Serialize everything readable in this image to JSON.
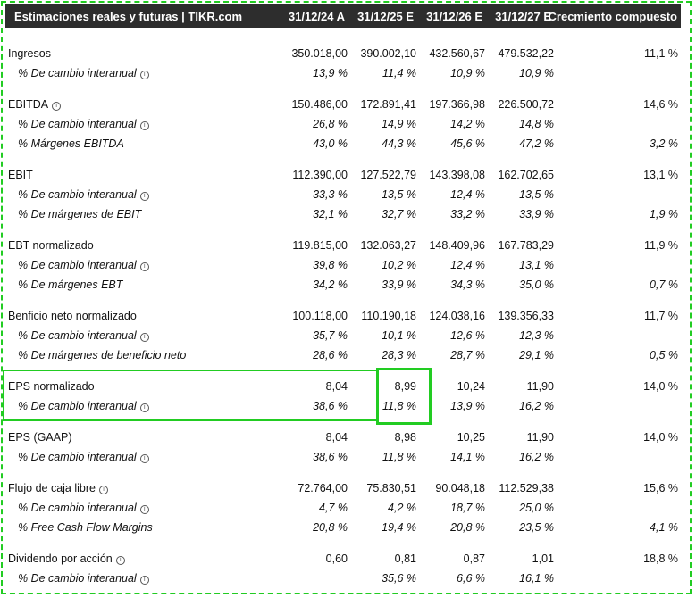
{
  "header": {
    "title": "Estimaciones reales y futuras | TIKR.com",
    "cols": [
      "31/12/24 A",
      "31/12/25 E",
      "31/12/26 E",
      "31/12/27 E",
      "Crecmiento compuesto"
    ]
  },
  "rows": [
    {
      "label": "Ingresos",
      "v": [
        "350.018,00",
        "390.002,10",
        "432.560,67",
        "479.532,22",
        "11,1 %"
      ]
    },
    {
      "label": "% De cambio interanual",
      "v": [
        "13,9 %",
        "11,4 %",
        "10,9 %",
        "10,9 %",
        ""
      ]
    },
    {
      "label": "EBITDA",
      "v": [
        "150.486,00",
        "172.891,41",
        "197.366,98",
        "226.500,72",
        "14,6 %"
      ]
    },
    {
      "label": "% De cambio interanual",
      "v": [
        "26,8 %",
        "14,9 %",
        "14,2 %",
        "14,8 %",
        ""
      ]
    },
    {
      "label": "% Márgenes EBITDA",
      "v": [
        "43,0 %",
        "44,3 %",
        "45,6 %",
        "47,2 %",
        "3,2 %"
      ]
    },
    {
      "label": "EBIT",
      "v": [
        "112.390,00",
        "127.522,79",
        "143.398,08",
        "162.702,65",
        "13,1 %"
      ]
    },
    {
      "label": "% De cambio interanual",
      "v": [
        "33,3 %",
        "13,5 %",
        "12,4 %",
        "13,5 %",
        ""
      ]
    },
    {
      "label": "% De márgenes de EBIT",
      "v": [
        "32,1 %",
        "32,7 %",
        "33,2 %",
        "33,9 %",
        "1,9 %"
      ]
    },
    {
      "label": "EBT normalizado",
      "v": [
        "119.815,00",
        "132.063,27",
        "148.409,96",
        "167.783,29",
        "11,9 %"
      ]
    },
    {
      "label": "% De cambio interanual",
      "v": [
        "39,8 %",
        "10,2 %",
        "12,4 %",
        "13,1 %",
        ""
      ]
    },
    {
      "label": "% De márgenes EBT",
      "v": [
        "34,2 %",
        "33,9 %",
        "34,3 %",
        "35,0 %",
        "0,7 %"
      ]
    },
    {
      "label": "Benficio neto normalizado",
      "v": [
        "100.118,00",
        "110.190,18",
        "124.038,16",
        "139.356,33",
        "11,7 %"
      ]
    },
    {
      "label": "% De cambio interanual",
      "v": [
        "35,7 %",
        "10,1 %",
        "12,6 %",
        "12,3 %",
        ""
      ]
    },
    {
      "label": "% De márgenes de beneficio neto",
      "v": [
        "28,6 %",
        "28,3 %",
        "28,7 %",
        "29,1 %",
        "0,5 %"
      ]
    },
    {
      "label": "EPS normalizado",
      "v": [
        "8,04",
        "8,99",
        "10,24",
        "11,90",
        "14,0 %"
      ]
    },
    {
      "label": "% De cambio interanual",
      "v": [
        "38,6 %",
        "11,8 %",
        "13,9 %",
        "16,2 %",
        ""
      ]
    },
    {
      "label": "EPS (GAAP)",
      "v": [
        "8,04",
        "8,98",
        "10,25",
        "11,90",
        "14,0 %"
      ]
    },
    {
      "label": "% De cambio interanual",
      "v": [
        "38,6 %",
        "11,8 %",
        "14,1 %",
        "16,2 %",
        ""
      ]
    },
    {
      "label": "Flujo de caja libre",
      "v": [
        "72.764,00",
        "75.830,51",
        "90.048,18",
        "112.529,38",
        "15,6 %"
      ]
    },
    {
      "label": "% De cambio interanual",
      "v": [
        "4,7 %",
        "4,2 %",
        "18,7 %",
        "25,0 %",
        ""
      ]
    },
    {
      "label": "% Free Cash Flow Margins",
      "v": [
        "20,8 %",
        "19,4 %",
        "20,8 %",
        "23,5 %",
        "4,1 %"
      ]
    },
    {
      "label": "Dividendo por acción",
      "v": [
        "0,60",
        "0,81",
        "0,87",
        "1,01",
        "18,8 %"
      ]
    },
    {
      "label": "% De cambio interanual",
      "v": [
        "",
        "35,6 %",
        "6,6 %",
        "16,1 %",
        ""
      ]
    }
  ]
}
